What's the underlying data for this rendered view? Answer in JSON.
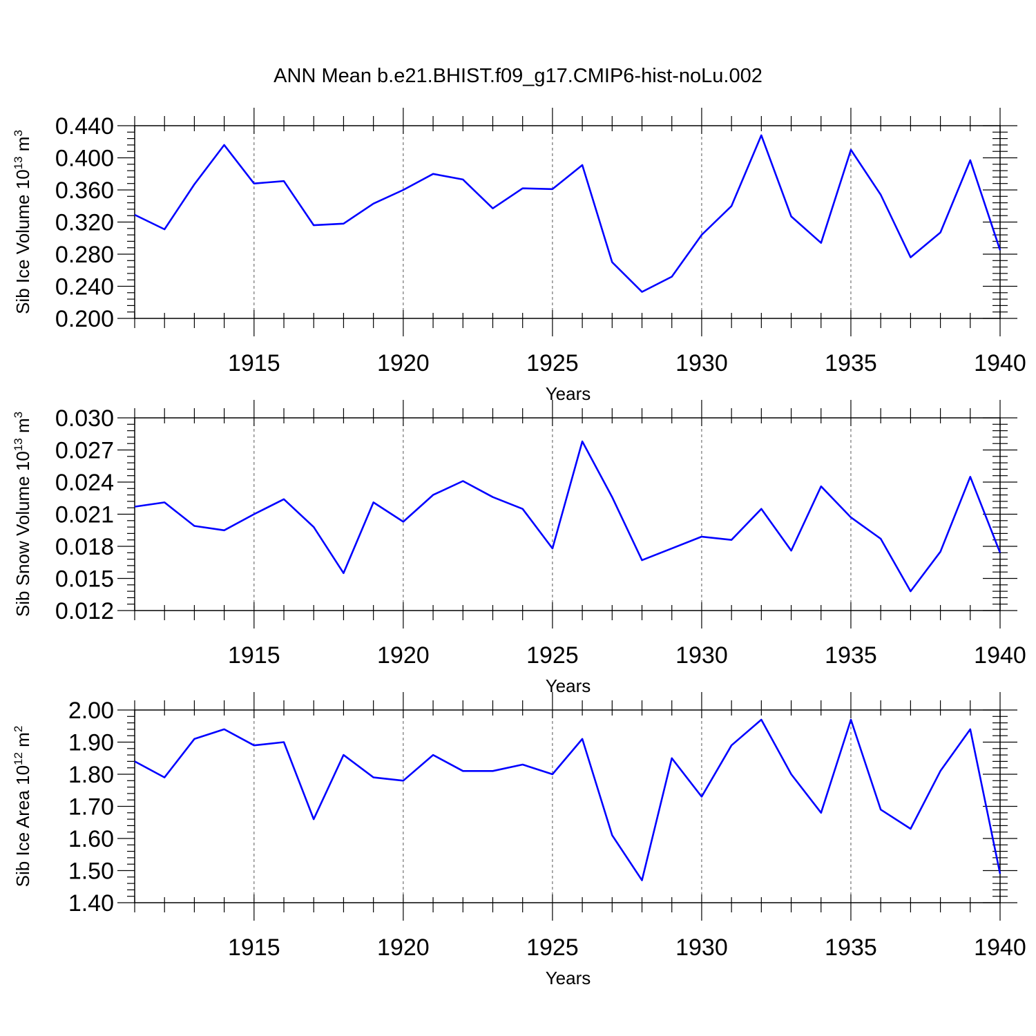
{
  "title": "ANN Mean b.e21.BHIST.f09_g17.CMIP6-hist-noLu.002",
  "colors": {
    "series": "#0000ff",
    "axis": "#000000",
    "grid": "#555555"
  },
  "chart_data": [
    {
      "type": "line",
      "ylabel": {
        "text": "Sib Ice Volume 10",
        "sup": "13",
        "unit": " m",
        "unit_sup": "3"
      },
      "xlabel": "Years",
      "xlim": [
        1911,
        1940
      ],
      "ylim": [
        0.2,
        0.44
      ],
      "yticks": [
        0.2,
        0.24,
        0.28,
        0.32,
        0.36,
        0.4,
        0.44
      ],
      "ytick_labels": [
        "0.200",
        "0.240",
        "0.280",
        "0.320",
        "0.360",
        "0.400",
        "0.440"
      ],
      "xticks": [
        1915,
        1920,
        1925,
        1930,
        1935,
        1940
      ],
      "xtick_labels": [
        "1915",
        "1920",
        "1925",
        "1930",
        "1935",
        "1940"
      ],
      "grid": "vertical dashed at major x ticks",
      "x": [
        1911,
        1912,
        1913,
        1914,
        1915,
        1916,
        1917,
        1918,
        1919,
        1920,
        1921,
        1922,
        1923,
        1924,
        1925,
        1926,
        1927,
        1928,
        1929,
        1930,
        1931,
        1932,
        1933,
        1934,
        1935,
        1936,
        1937,
        1938,
        1939,
        1940
      ],
      "values": [
        0.329,
        0.311,
        0.367,
        0.416,
        0.368,
        0.371,
        0.316,
        0.318,
        0.343,
        0.36,
        0.38,
        0.373,
        0.337,
        0.362,
        0.361,
        0.391,
        0.27,
        0.233,
        0.252,
        0.304,
        0.34,
        0.428,
        0.327,
        0.294,
        0.41,
        0.354,
        0.276,
        0.307,
        0.397,
        0.285
      ]
    },
    {
      "type": "line",
      "ylabel": {
        "text": "Sib Snow Volume 10",
        "sup": "13",
        "unit": " m",
        "unit_sup": "3"
      },
      "xlabel": "Years",
      "xlim": [
        1911,
        1940
      ],
      "ylim": [
        0.012,
        0.03
      ],
      "yticks": [
        0.012,
        0.015,
        0.018,
        0.021,
        0.024,
        0.027,
        0.03
      ],
      "ytick_labels": [
        "0.012",
        "0.015",
        "0.018",
        "0.021",
        "0.024",
        "0.027",
        "0.030"
      ],
      "xticks": [
        1915,
        1920,
        1925,
        1930,
        1935,
        1940
      ],
      "xtick_labels": [
        "1915",
        "1920",
        "1925",
        "1930",
        "1935",
        "1940"
      ],
      "grid": "vertical dashed at major x ticks",
      "x": [
        1911,
        1912,
        1913,
        1914,
        1915,
        1916,
        1917,
        1918,
        1919,
        1920,
        1921,
        1922,
        1923,
        1924,
        1925,
        1926,
        1927,
        1928,
        1929,
        1930,
        1931,
        1932,
        1933,
        1934,
        1935,
        1936,
        1937,
        1938,
        1939,
        1940
      ],
      "values": [
        0.0217,
        0.0221,
        0.0199,
        0.0195,
        0.021,
        0.0224,
        0.0198,
        0.0155,
        0.0221,
        0.0203,
        0.0228,
        0.0241,
        0.0226,
        0.0215,
        0.0178,
        0.0278,
        0.0226,
        0.0167,
        0.0178,
        0.0189,
        0.0186,
        0.0215,
        0.0176,
        0.0236,
        0.0207,
        0.0187,
        0.0138,
        0.0175,
        0.0245,
        0.0174
      ]
    },
    {
      "type": "line",
      "ylabel": {
        "text": "Sib Ice Area 10",
        "sup": "12",
        "unit": " m",
        "unit_sup": "2"
      },
      "xlabel": "Years",
      "xlim": [
        1911,
        1940
      ],
      "ylim": [
        1.4,
        2.0
      ],
      "yticks": [
        1.4,
        1.5,
        1.6,
        1.7,
        1.8,
        1.9,
        2.0
      ],
      "ytick_labels": [
        "1.40",
        "1.50",
        "1.60",
        "1.70",
        "1.80",
        "1.90",
        "2.00"
      ],
      "xticks": [
        1915,
        1920,
        1925,
        1930,
        1935,
        1940
      ],
      "xtick_labels": [
        "1915",
        "1920",
        "1925",
        "1930",
        "1935",
        "1940"
      ],
      "grid": "vertical dashed at major x ticks",
      "x": [
        1911,
        1912,
        1913,
        1914,
        1915,
        1916,
        1917,
        1918,
        1919,
        1920,
        1921,
        1922,
        1923,
        1924,
        1925,
        1926,
        1927,
        1928,
        1929,
        1930,
        1931,
        1932,
        1933,
        1934,
        1935,
        1936,
        1937,
        1938,
        1939,
        1940
      ],
      "values": [
        1.84,
        1.79,
        1.91,
        1.94,
        1.89,
        1.9,
        1.66,
        1.86,
        1.79,
        1.78,
        1.86,
        1.81,
        1.81,
        1.83,
        1.8,
        1.91,
        1.61,
        1.47,
        1.85,
        1.73,
        1.89,
        1.97,
        1.8,
        1.68,
        1.97,
        1.69,
        1.63,
        1.81,
        1.94,
        1.49
      ]
    }
  ]
}
